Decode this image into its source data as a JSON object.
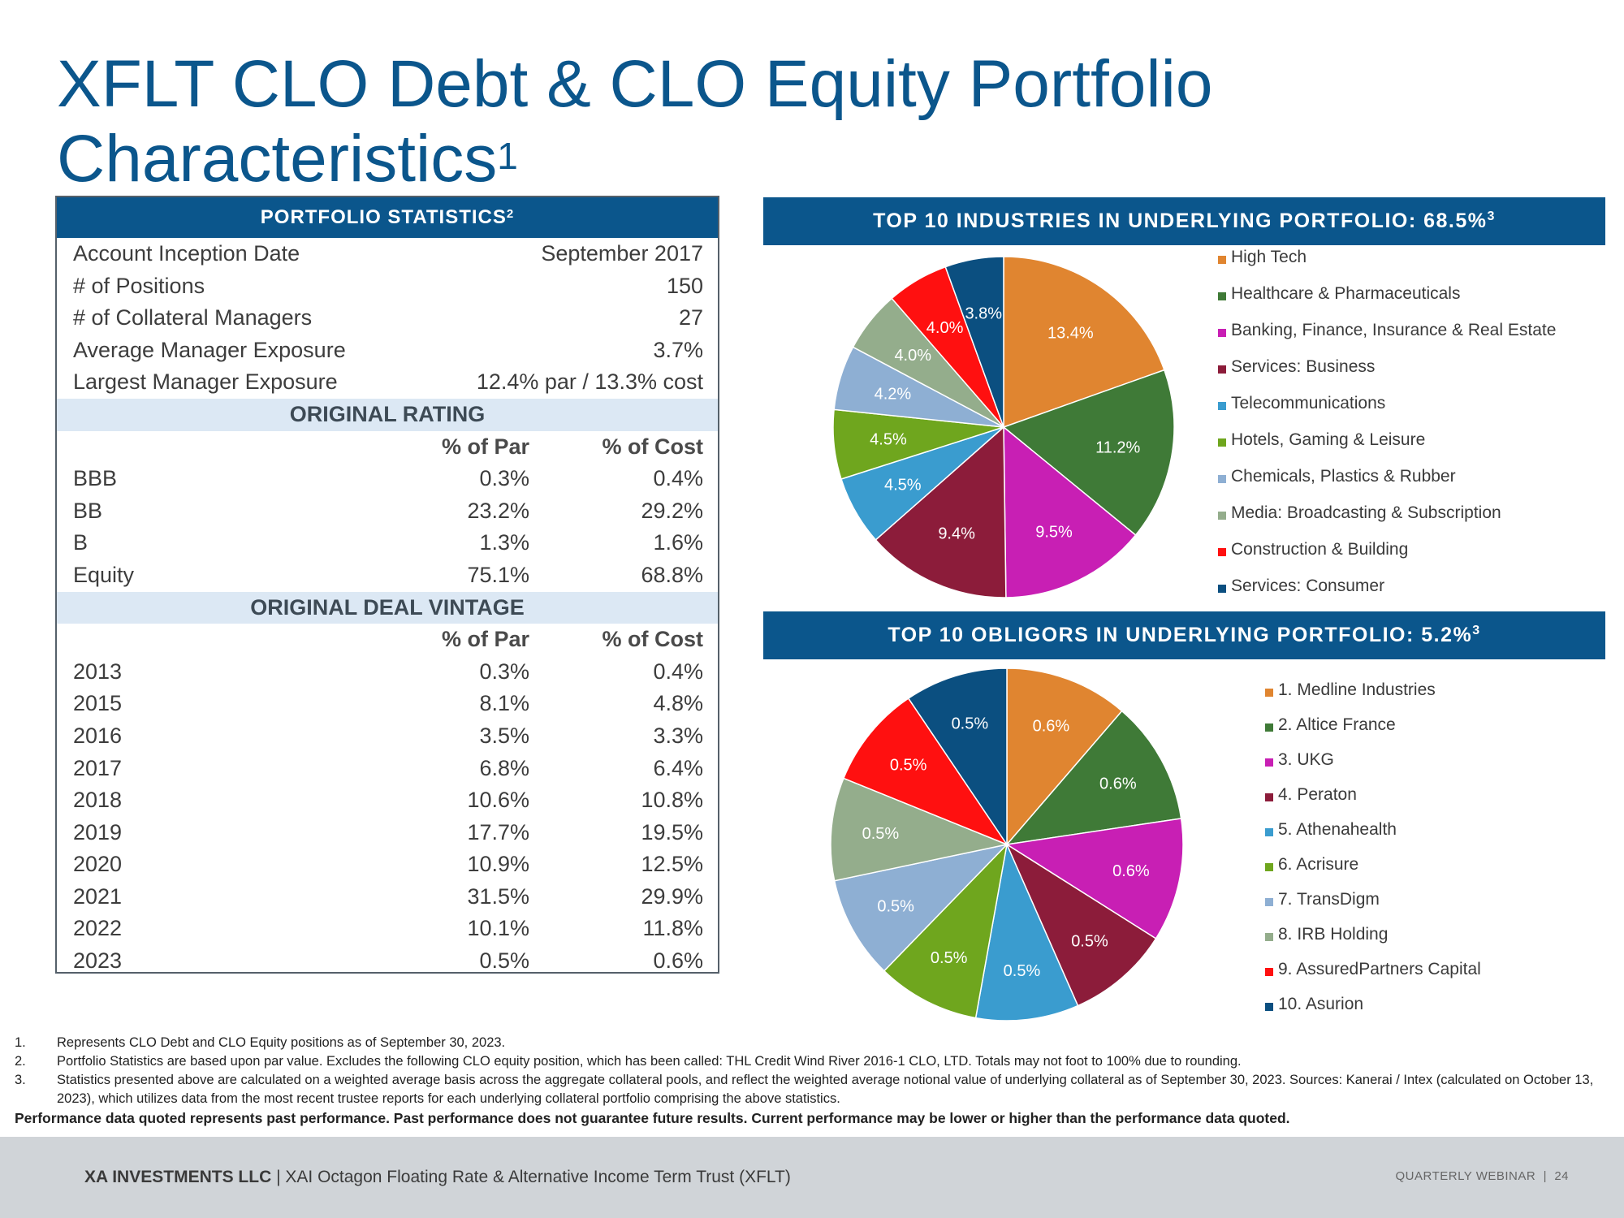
{
  "title": {
    "line1": "XFLT CLO Debt & CLO Equity Portfolio",
    "line2": "Characteristics",
    "sup": "1"
  },
  "stats": {
    "heading": "PORTFOLIO STATISTICS",
    "heading_sup": "2",
    "rows": [
      {
        "label": "Account Inception Date",
        "value": "September 2017"
      },
      {
        "label": "# of Positions",
        "value": "150"
      },
      {
        "label": "# of Collateral Managers",
        "value": "27"
      },
      {
        "label": "Average Manager Exposure",
        "value": "3.7%"
      },
      {
        "label": "Largest Manager Exposure",
        "value": "12.4% par / 13.3% cost"
      }
    ],
    "rating": {
      "heading": "ORIGINAL RATING",
      "col_par": "% of Par",
      "col_cost": "% of Cost",
      "rows": [
        {
          "label": "BBB",
          "par": "0.3%",
          "cost": "0.4%"
        },
        {
          "label": "BB",
          "par": "23.2%",
          "cost": "29.2%"
        },
        {
          "label": "B",
          "par": "1.3%",
          "cost": "1.6%"
        },
        {
          "label": "Equity",
          "par": "75.1%",
          "cost": "68.8%"
        }
      ]
    },
    "vintage": {
      "heading": "ORIGINAL DEAL VINTAGE",
      "col_par": "% of Par",
      "col_cost": "% of Cost",
      "rows": [
        {
          "label": "2013",
          "par": "0.3%",
          "cost": "0.4%"
        },
        {
          "label": "2015",
          "par": "8.1%",
          "cost": "4.8%"
        },
        {
          "label": "2016",
          "par": "3.5%",
          "cost": "3.3%"
        },
        {
          "label": "2017",
          "par": "6.8%",
          "cost": "6.4%"
        },
        {
          "label": "2018",
          "par": "10.6%",
          "cost": "10.8%"
        },
        {
          "label": "2019",
          "par": "17.7%",
          "cost": "19.5%"
        },
        {
          "label": "2020",
          "par": "10.9%",
          "cost": "12.5%"
        },
        {
          "label": "2021",
          "par": "31.5%",
          "cost": "29.9%"
        },
        {
          "label": "2022",
          "par": "10.1%",
          "cost": "11.8%"
        },
        {
          "label": "2023",
          "par": "0.5%",
          "cost": "0.6%"
        }
      ]
    }
  },
  "chart_data": [
    {
      "type": "pie",
      "title": "TOP 10 INDUSTRIES IN UNDERLYING PORTFOLIO: 68.5%",
      "title_sup": "3",
      "legend_position": "right",
      "categories": [
        "High Tech",
        "Healthcare & Pharmaceuticals",
        "Banking, Finance, Insurance & Real Estate",
        "Services: Business",
        "Telecommunications",
        "Hotels, Gaming & Leisure",
        "Chemicals, Plastics & Rubber",
        "Media: Broadcasting & Subscription",
        "Construction & Building",
        "Services: Consumer"
      ],
      "values": [
        13.4,
        11.2,
        9.5,
        9.4,
        4.5,
        4.5,
        4.2,
        4.0,
        4.0,
        3.8
      ],
      "labels": [
        "13.4%",
        "11.2%",
        "9.5%",
        "9.4%",
        "4.5%",
        "4.5%",
        "4.2%",
        "4.0%",
        "4.0%",
        "3.8%"
      ],
      "colors": [
        "#e08530",
        "#3f7a37",
        "#c81fb4",
        "#8c1c3a",
        "#3a9ccf",
        "#6fa61e",
        "#8eafd3",
        "#94ad8c",
        "#ff1010",
        "#0b4f80"
      ]
    },
    {
      "type": "pie",
      "title": "TOP 10 OBLIGORS IN UNDERLYING PORTFOLIO: 5.2%",
      "title_sup": "3",
      "legend_position": "right",
      "categories": [
        "1. Medline Industries",
        "2. Altice France",
        "3. UKG",
        "4. Peraton",
        "5. Athenahealth",
        "6. Acrisure",
        "7. TransDigm",
        "8. IRB Holding",
        "9. AssuredPartners Capital",
        "10. Asurion"
      ],
      "values": [
        0.6,
        0.6,
        0.6,
        0.5,
        0.5,
        0.5,
        0.5,
        0.5,
        0.5,
        0.5
      ],
      "labels": [
        "0.6%",
        "0.6%",
        "0.6%",
        "0.5%",
        "0.5%",
        "0.5%",
        "0.5%",
        "0.5%",
        "0.5%",
        "0.5%"
      ],
      "colors": [
        "#e08530",
        "#3f7a37",
        "#c81fb4",
        "#8c1c3a",
        "#3a9ccf",
        "#6fa61e",
        "#8eafd3",
        "#94ad8c",
        "#ff1010",
        "#0b4f80"
      ]
    }
  ],
  "footnotes": [
    {
      "num": "1.",
      "text": "Represents CLO Debt and CLO Equity positions as of September 30, 2023."
    },
    {
      "num": "2.",
      "text": "Portfolio Statistics are based upon par value. Excludes the following CLO equity position, which has been called: THL Credit Wind River 2016-1 CLO, LTD. Totals may not foot to 100% due to rounding."
    },
    {
      "num": "3.",
      "text": "Statistics presented above are calculated on a weighted average basis across the aggregate collateral pools, and reflect the weighted average notional value of underlying collateral as of September 30, 2023. Sources: Kanerai / Intex (calculated on October 13, 2023), which utilizes data from the most recent trustee reports for each underlying collateral portfolio comprising the above statistics."
    }
  ],
  "disclaimer": "Performance data quoted represents past performance. Past performance does not guarantee future results. Current performance may be lower or higher than the performance data quoted.",
  "footer": {
    "company": "XA INVESTMENTS LLC",
    "separator": "|",
    "fund": "XAI Octagon Floating Rate & Alternative Income Term Trust (XFLT)",
    "right": "QUARTERLY WEBINAR",
    "right_sep": "|",
    "page": "24"
  }
}
